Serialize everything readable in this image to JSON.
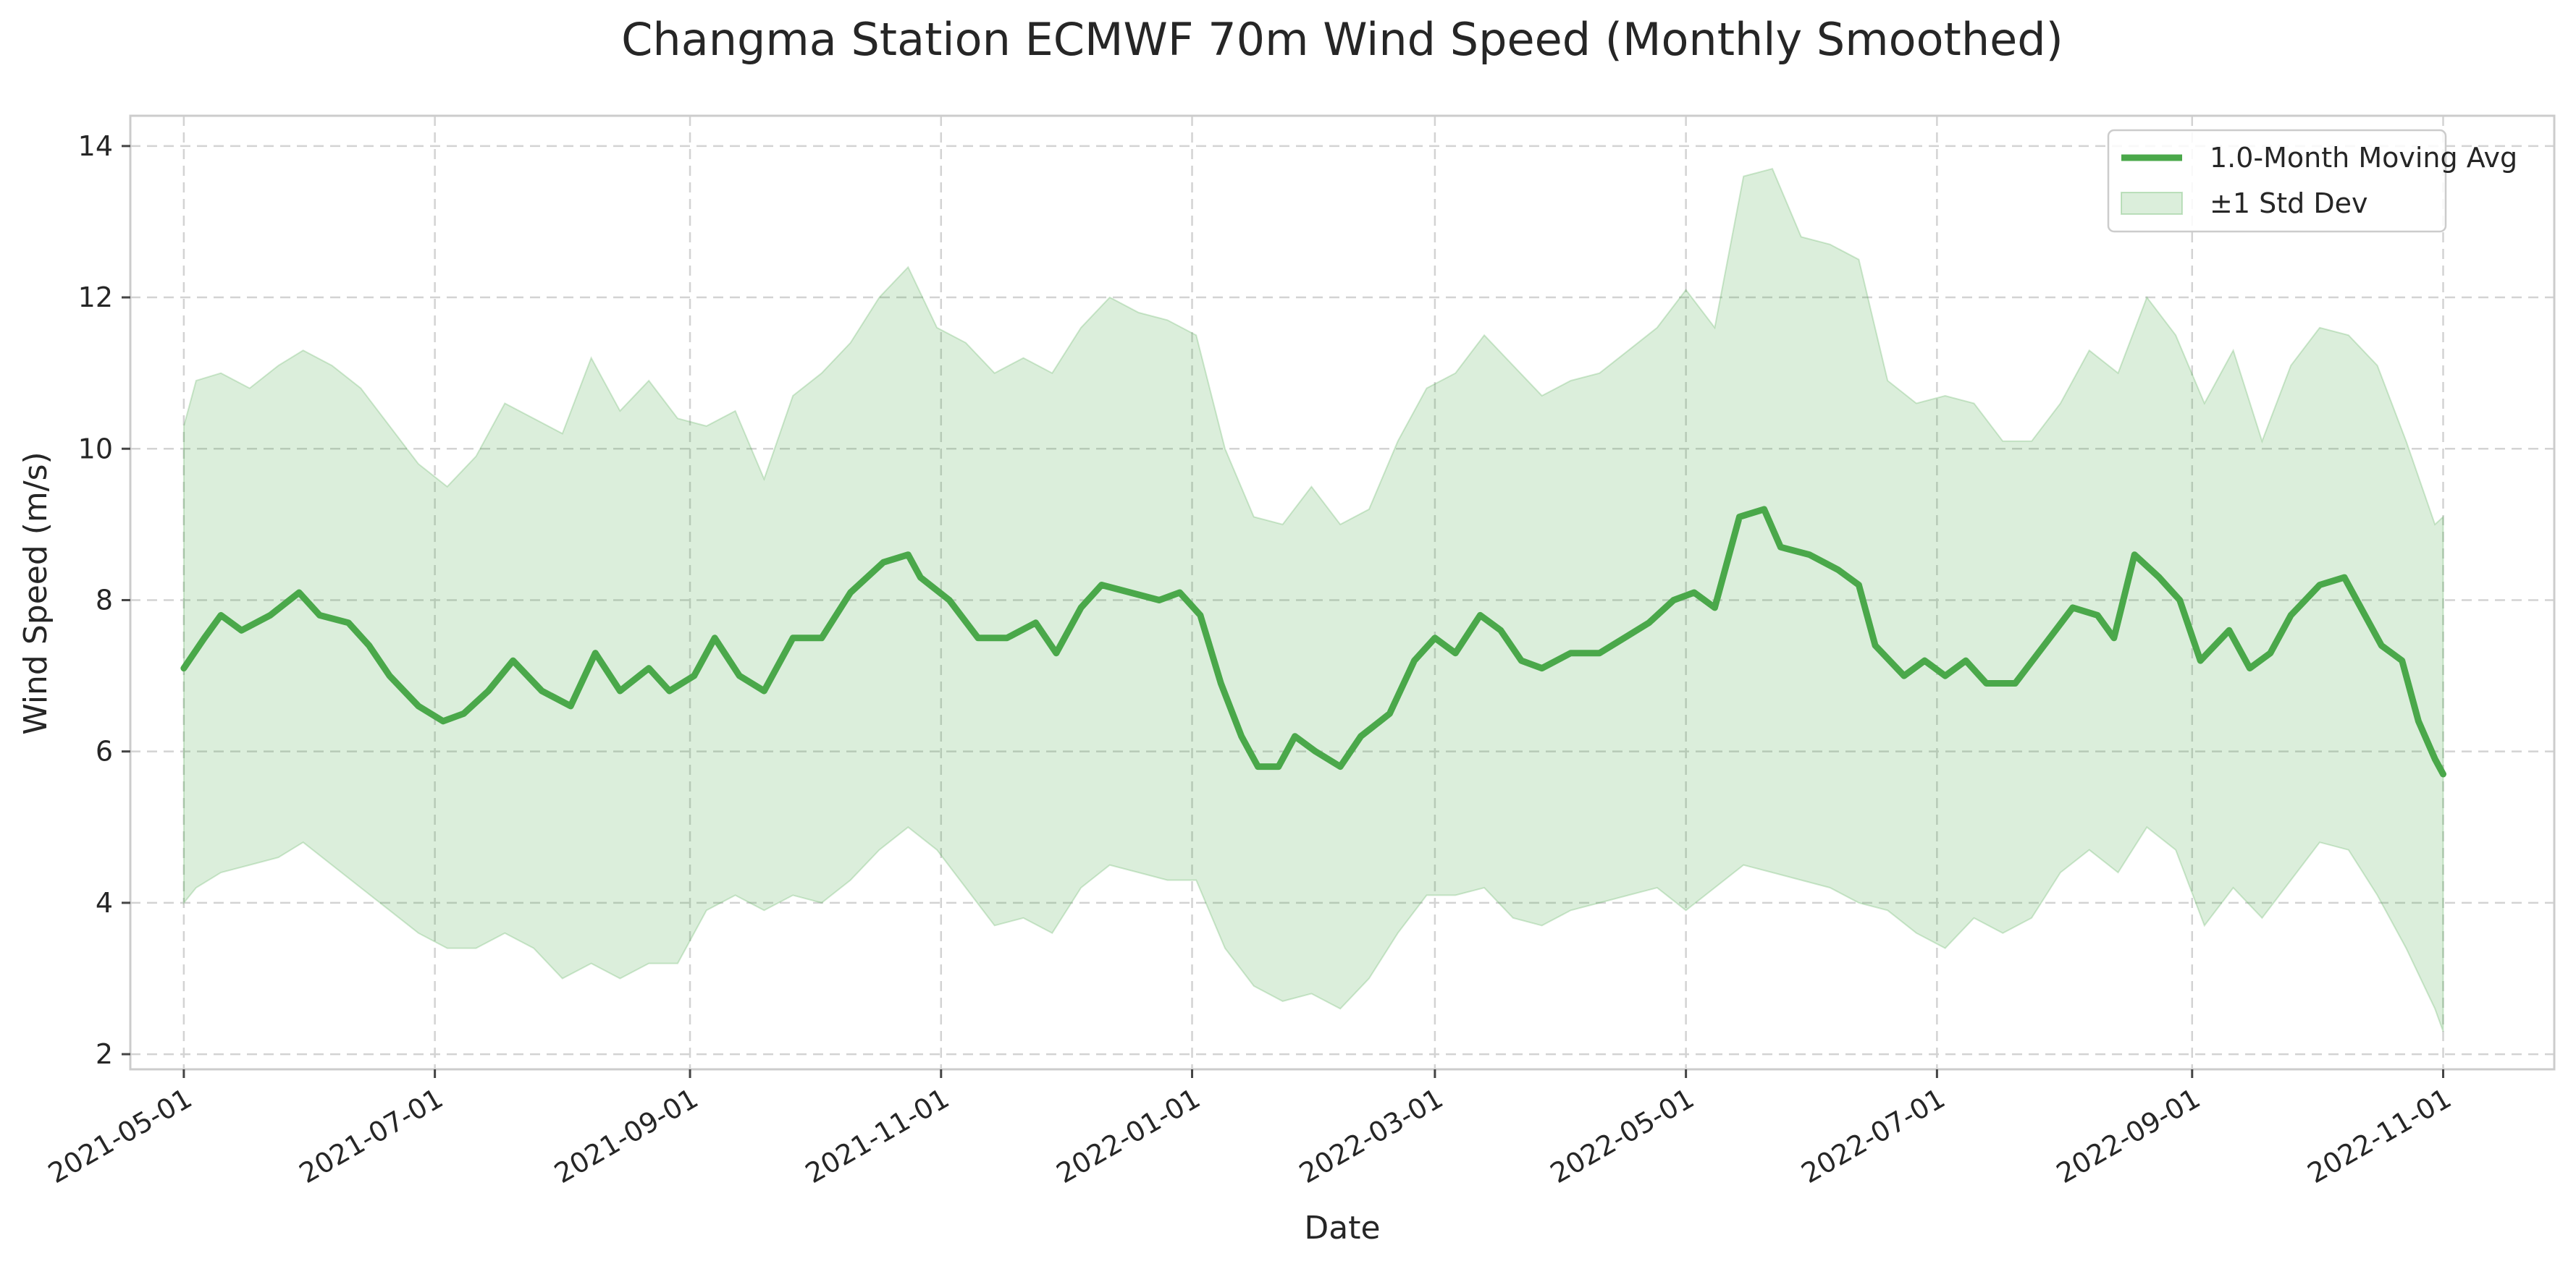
{
  "chart_data": {
    "type": "line",
    "title": "Changma Station ECMWF 70m Wind Speed (Monthly Smoothed)",
    "xlabel": "Date",
    "ylabel": "Wind Speed (m/s)",
    "x_type": "date",
    "xlim": [
      "2021-04-18",
      "2022-11-28"
    ],
    "ylim": [
      1.8,
      14.4
    ],
    "x_ticks": [
      "2021-05-01",
      "2021-07-01",
      "2021-09-01",
      "2021-11-01",
      "2022-01-01",
      "2022-03-01",
      "2022-05-01",
      "2022-07-01",
      "2022-09-01",
      "2022-11-01"
    ],
    "y_ticks": [
      2,
      4,
      6,
      8,
      10,
      12,
      14
    ],
    "grid": true,
    "legend_position": "top-right",
    "colors": {
      "line": "#4aa84a",
      "band": "#4aa84a",
      "grid": "#d3d3d3",
      "frame": "#cccccc"
    },
    "series": [
      {
        "name": "1.0-Month Moving Avg",
        "kind": "line",
        "points": [
          [
            "2021-05-01",
            7.1
          ],
          [
            "2021-05-06",
            7.5
          ],
          [
            "2021-05-10",
            7.8
          ],
          [
            "2021-05-15",
            7.6
          ],
          [
            "2021-05-22",
            7.8
          ],
          [
            "2021-05-29",
            8.1
          ],
          [
            "2021-06-03",
            7.8
          ],
          [
            "2021-06-10",
            7.7
          ],
          [
            "2021-06-15",
            7.4
          ],
          [
            "2021-06-20",
            7.0
          ],
          [
            "2021-06-27",
            6.6
          ],
          [
            "2021-07-03",
            6.4
          ],
          [
            "2021-07-08",
            6.5
          ],
          [
            "2021-07-14",
            6.8
          ],
          [
            "2021-07-20",
            7.2
          ],
          [
            "2021-07-27",
            6.8
          ],
          [
            "2021-08-03",
            6.6
          ],
          [
            "2021-08-09",
            7.3
          ],
          [
            "2021-08-15",
            6.8
          ],
          [
            "2021-08-22",
            7.1
          ],
          [
            "2021-08-27",
            6.8
          ],
          [
            "2021-09-02",
            7.0
          ],
          [
            "2021-09-07",
            7.5
          ],
          [
            "2021-09-13",
            7.0
          ],
          [
            "2021-09-19",
            6.8
          ],
          [
            "2021-09-26",
            7.5
          ],
          [
            "2021-10-03",
            7.5
          ],
          [
            "2021-10-10",
            8.1
          ],
          [
            "2021-10-18",
            8.5
          ],
          [
            "2021-10-24",
            8.6
          ],
          [
            "2021-10-27",
            8.3
          ],
          [
            "2021-11-03",
            8.0
          ],
          [
            "2021-11-10",
            7.5
          ],
          [
            "2021-11-17",
            7.5
          ],
          [
            "2021-11-24",
            7.7
          ],
          [
            "2021-11-29",
            7.3
          ],
          [
            "2021-12-05",
            7.9
          ],
          [
            "2021-12-10",
            8.2
          ],
          [
            "2021-12-17",
            8.1
          ],
          [
            "2021-12-24",
            8.0
          ],
          [
            "2021-12-29",
            8.1
          ],
          [
            "2022-01-03",
            7.8
          ],
          [
            "2022-01-08",
            6.9
          ],
          [
            "2022-01-13",
            6.2
          ],
          [
            "2022-01-17",
            5.8
          ],
          [
            "2022-01-22",
            5.8
          ],
          [
            "2022-01-26",
            6.2
          ],
          [
            "2022-01-31",
            6.0
          ],
          [
            "2022-02-06",
            5.8
          ],
          [
            "2022-02-11",
            6.2
          ],
          [
            "2022-02-18",
            6.5
          ],
          [
            "2022-02-24",
            7.2
          ],
          [
            "2022-03-01",
            7.5
          ],
          [
            "2022-03-06",
            7.3
          ],
          [
            "2022-03-12",
            7.8
          ],
          [
            "2022-03-17",
            7.6
          ],
          [
            "2022-03-22",
            7.2
          ],
          [
            "2022-03-27",
            7.1
          ],
          [
            "2022-04-03",
            7.3
          ],
          [
            "2022-04-10",
            7.3
          ],
          [
            "2022-04-16",
            7.5
          ],
          [
            "2022-04-22",
            7.7
          ],
          [
            "2022-04-28",
            8.0
          ],
          [
            "2022-05-03",
            8.1
          ],
          [
            "2022-05-08",
            7.9
          ],
          [
            "2022-05-14",
            9.1
          ],
          [
            "2022-05-20",
            9.2
          ],
          [
            "2022-05-24",
            8.7
          ],
          [
            "2022-05-31",
            8.6
          ],
          [
            "2022-06-07",
            8.4
          ],
          [
            "2022-06-12",
            8.2
          ],
          [
            "2022-06-16",
            7.4
          ],
          [
            "2022-06-23",
            7.0
          ],
          [
            "2022-06-28",
            7.2
          ],
          [
            "2022-07-03",
            7.0
          ],
          [
            "2022-07-08",
            7.2
          ],
          [
            "2022-07-13",
            6.9
          ],
          [
            "2022-07-20",
            6.9
          ],
          [
            "2022-07-27",
            7.4
          ],
          [
            "2022-08-03",
            7.9
          ],
          [
            "2022-08-09",
            7.8
          ],
          [
            "2022-08-13",
            7.5
          ],
          [
            "2022-08-18",
            8.6
          ],
          [
            "2022-08-24",
            8.3
          ],
          [
            "2022-08-29",
            8.0
          ],
          [
            "2022-09-03",
            7.2
          ],
          [
            "2022-09-10",
            7.6
          ],
          [
            "2022-09-15",
            7.1
          ],
          [
            "2022-09-20",
            7.3
          ],
          [
            "2022-09-25",
            7.8
          ],
          [
            "2022-10-02",
            8.2
          ],
          [
            "2022-10-08",
            8.3
          ],
          [
            "2022-10-13",
            7.8
          ],
          [
            "2022-10-17",
            7.4
          ],
          [
            "2022-10-22",
            7.2
          ],
          [
            "2022-10-26",
            6.4
          ],
          [
            "2022-10-30",
            5.9
          ],
          [
            "2022-11-01",
            5.7
          ]
        ]
      },
      {
        "name": "±1 Std Dev",
        "kind": "band",
        "points": [
          [
            "2021-05-01",
            4.0,
            10.3
          ],
          [
            "2021-05-04",
            4.2,
            10.9
          ],
          [
            "2021-05-10",
            4.4,
            11.0
          ],
          [
            "2021-05-17",
            4.5,
            10.8
          ],
          [
            "2021-05-24",
            4.6,
            11.1
          ],
          [
            "2021-05-30",
            4.8,
            11.3
          ],
          [
            "2021-06-06",
            4.5,
            11.1
          ],
          [
            "2021-06-13",
            4.2,
            10.8
          ],
          [
            "2021-06-20",
            3.9,
            10.3
          ],
          [
            "2021-06-27",
            3.6,
            9.8
          ],
          [
            "2021-07-04",
            3.4,
            9.5
          ],
          [
            "2021-07-11",
            3.4,
            9.9
          ],
          [
            "2021-07-18",
            3.6,
            10.6
          ],
          [
            "2021-07-25",
            3.4,
            10.4
          ],
          [
            "2021-08-01",
            3.0,
            10.2
          ],
          [
            "2021-08-08",
            3.2,
            11.2
          ],
          [
            "2021-08-15",
            3.0,
            10.5
          ],
          [
            "2021-08-22",
            3.2,
            10.9
          ],
          [
            "2021-08-29",
            3.2,
            10.4
          ],
          [
            "2021-09-05",
            3.9,
            10.3
          ],
          [
            "2021-09-12",
            4.1,
            10.5
          ],
          [
            "2021-09-19",
            3.9,
            9.6
          ],
          [
            "2021-09-26",
            4.1,
            10.7
          ],
          [
            "2021-10-03",
            4.0,
            11.0
          ],
          [
            "2021-10-10",
            4.3,
            11.4
          ],
          [
            "2021-10-17",
            4.7,
            12.0
          ],
          [
            "2021-10-24",
            5.0,
            12.4
          ],
          [
            "2021-10-31",
            4.7,
            11.6
          ],
          [
            "2021-11-07",
            4.2,
            11.4
          ],
          [
            "2021-11-14",
            3.7,
            11.0
          ],
          [
            "2021-11-21",
            3.8,
            11.2
          ],
          [
            "2021-11-28",
            3.6,
            11.0
          ],
          [
            "2021-12-05",
            4.2,
            11.6
          ],
          [
            "2021-12-12",
            4.5,
            12.0
          ],
          [
            "2021-12-19",
            4.4,
            11.8
          ],
          [
            "2021-12-26",
            4.3,
            11.7
          ],
          [
            "2022-01-02",
            4.3,
            11.5
          ],
          [
            "2022-01-09",
            3.4,
            10.0
          ],
          [
            "2022-01-16",
            2.9,
            9.1
          ],
          [
            "2022-01-23",
            2.7,
            9.0
          ],
          [
            "2022-01-30",
            2.8,
            9.5
          ],
          [
            "2022-02-06",
            2.6,
            9.0
          ],
          [
            "2022-02-13",
            3.0,
            9.2
          ],
          [
            "2022-02-20",
            3.6,
            10.1
          ],
          [
            "2022-02-27",
            4.1,
            10.8
          ],
          [
            "2022-03-06",
            4.1,
            11.0
          ],
          [
            "2022-03-13",
            4.2,
            11.5
          ],
          [
            "2022-03-20",
            3.8,
            11.1
          ],
          [
            "2022-03-27",
            3.7,
            10.7
          ],
          [
            "2022-04-03",
            3.9,
            10.9
          ],
          [
            "2022-04-10",
            4.0,
            11.0
          ],
          [
            "2022-04-17",
            4.1,
            11.3
          ],
          [
            "2022-04-24",
            4.2,
            11.6
          ],
          [
            "2022-05-01",
            3.9,
            12.1
          ],
          [
            "2022-05-08",
            4.2,
            11.6
          ],
          [
            "2022-05-15",
            4.5,
            13.6
          ],
          [
            "2022-05-22",
            4.4,
            13.7
          ],
          [
            "2022-05-29",
            4.3,
            12.8
          ],
          [
            "2022-06-05",
            4.2,
            12.7
          ],
          [
            "2022-06-12",
            4.0,
            12.5
          ],
          [
            "2022-06-19",
            3.9,
            10.9
          ],
          [
            "2022-06-26",
            3.6,
            10.6
          ],
          [
            "2022-07-03",
            3.4,
            10.7
          ],
          [
            "2022-07-10",
            3.8,
            10.6
          ],
          [
            "2022-07-17",
            3.6,
            10.1
          ],
          [
            "2022-07-24",
            3.8,
            10.1
          ],
          [
            "2022-07-31",
            4.4,
            10.6
          ],
          [
            "2022-08-07",
            4.7,
            11.3
          ],
          [
            "2022-08-14",
            4.4,
            11.0
          ],
          [
            "2022-08-21",
            5.0,
            12.0
          ],
          [
            "2022-08-28",
            4.7,
            11.5
          ],
          [
            "2022-09-04",
            3.7,
            10.6
          ],
          [
            "2022-09-11",
            4.2,
            11.3
          ],
          [
            "2022-09-18",
            3.8,
            10.1
          ],
          [
            "2022-09-25",
            4.3,
            11.1
          ],
          [
            "2022-10-02",
            4.8,
            11.6
          ],
          [
            "2022-10-09",
            4.7,
            11.5
          ],
          [
            "2022-10-16",
            4.1,
            11.1
          ],
          [
            "2022-10-23",
            3.4,
            10.1
          ],
          [
            "2022-10-30",
            2.6,
            9.0
          ],
          [
            "2022-11-01",
            2.3,
            9.1
          ]
        ]
      }
    ]
  }
}
